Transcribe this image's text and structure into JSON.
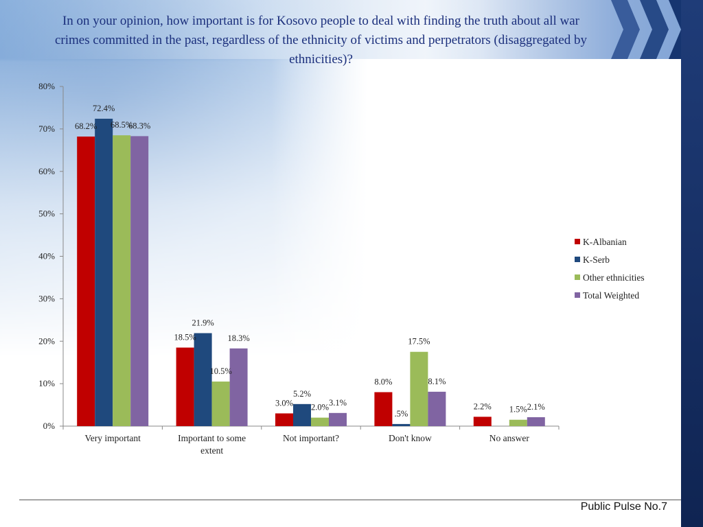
{
  "title": "In on your opinion, how important is for Kosovo people to deal with finding the truth about all war crimes committed in the past, regardless of the ethnicity of victims and perpetrators (disaggregated by ethnicities)?",
  "footer": "Public Pulse No.7",
  "chart_data": {
    "type": "bar",
    "categories": [
      "Very important",
      "Important to some extent",
      "Not important?",
      "Don't know",
      "No answer"
    ],
    "series": [
      {
        "name": "K-Albanian",
        "color": "#c00000",
        "values": [
          68.2,
          18.5,
          3.0,
          8.0,
          2.2
        ],
        "labels": [
          "68.2%",
          "18.5%",
          "3.0%",
          "8.0%",
          "2.2%"
        ]
      },
      {
        "name": "K-Serb",
        "color": "#1f497d",
        "values": [
          72.4,
          21.9,
          5.2,
          0.5,
          0
        ],
        "labels": [
          "72.4%",
          "21.9%",
          "5.2%",
          ".5%",
          ""
        ]
      },
      {
        "name": "Other ethnicities",
        "color": "#9bbb59",
        "values": [
          68.5,
          10.5,
          2.0,
          17.5,
          1.5
        ],
        "labels": [
          "68.5%",
          "10.5%",
          "2.0%",
          "17.5%",
          "1.5%"
        ]
      },
      {
        "name": "Total Weighted",
        "color": "#8064a2",
        "values": [
          68.3,
          18.3,
          3.1,
          8.1,
          2.1
        ],
        "labels": [
          "68.3%",
          "18.3%",
          "3.1%",
          "8.1%",
          "2.1%"
        ]
      }
    ],
    "y_ticks": [
      "0%",
      "10%",
      "20%",
      "30%",
      "40%",
      "50%",
      "60%",
      "70%",
      "80%"
    ],
    "ylim": [
      0,
      80
    ],
    "legend_position": "right",
    "grid": false
  }
}
